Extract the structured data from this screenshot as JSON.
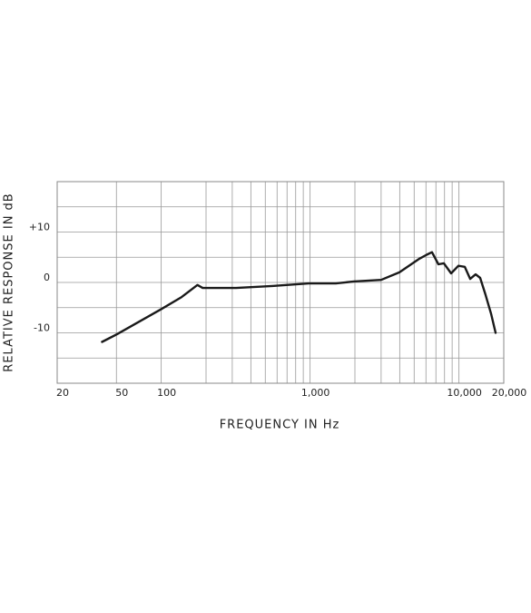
{
  "chart_data": {
    "type": "line",
    "x_label": "FREQUENCY IN Hz",
    "y_label": "RELATIVE RESPONSE IN dB",
    "xscale": "log",
    "xlim": [
      20,
      20000
    ],
    "ylim": [
      -20,
      20
    ],
    "xticks": [
      20,
      50,
      100,
      {
        "value": 1000,
        "label": "1,000"
      },
      {
        "value": 10000,
        "label": "10,000"
      },
      {
        "value": 20000,
        "label": "20,000"
      }
    ],
    "yticks": [
      {
        "value": 10,
        "label": "+10"
      },
      0,
      -10
    ],
    "xgrid": [
      50,
      100,
      200,
      300,
      400,
      500,
      600,
      700,
      800,
      900,
      1000,
      2000,
      3000,
      4000,
      5000,
      6000,
      7000,
      8000,
      9000,
      10000
    ],
    "ygrid": [
      -15,
      -10,
      -5,
      0,
      5,
      10,
      15
    ],
    "grid": true,
    "series": [
      {
        "color": "#1a1a1a",
        "x": [
          40,
          51,
          100,
          137,
          175,
          190,
          318,
          557,
          978,
          1490,
          1970,
          3000,
          3980,
          5420,
          6070,
          6590,
          7280,
          7920,
          8860,
          9910,
          10940,
          11890,
          12950,
          13880,
          15100,
          16440,
          17630
        ],
        "values": [
          -11.8,
          -10.2,
          -5.3,
          -2.9,
          -0.5,
          -1.1,
          -1.1,
          -0.7,
          -0.2,
          -0.2,
          0.2,
          0.5,
          2,
          4.7,
          5.5,
          6,
          3.6,
          3.8,
          1.8,
          3.3,
          3.1,
          0.7,
          1.6,
          0.9,
          -2.5,
          -6.2,
          -10
        ]
      }
    ]
  }
}
